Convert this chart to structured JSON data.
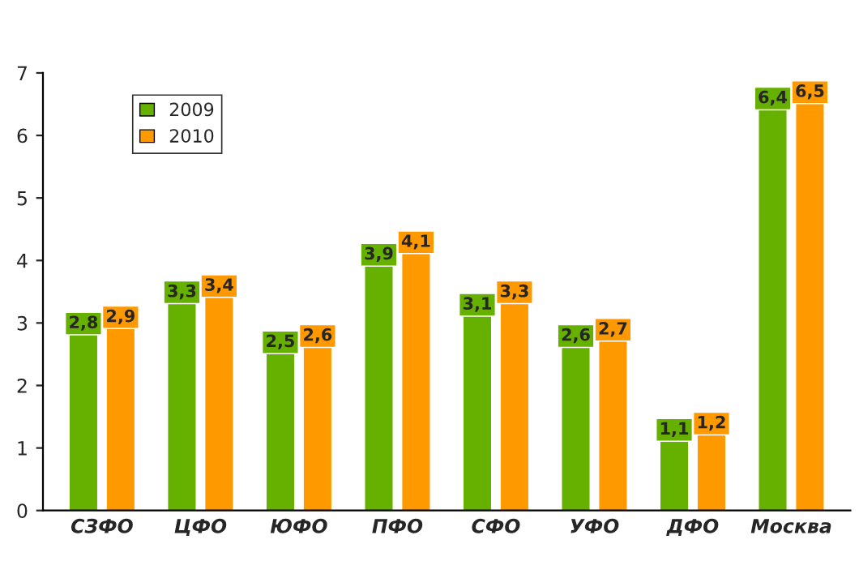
{
  "chart_data": {
    "type": "bar",
    "categories": [
      "СЗФО",
      "ЦФО",
      "ЮФО",
      "ПФО",
      "СФО",
      "УФО",
      "ДФО",
      "Москва"
    ],
    "series": [
      {
        "name": "2009",
        "color": "#66b000",
        "values": [
          2.8,
          3.3,
          2.5,
          3.9,
          3.1,
          2.6,
          1.1,
          6.4
        ],
        "value_labels": [
          "2,8",
          "3,3",
          "2,5",
          "3,9",
          "3,1",
          "2,6",
          "1,1",
          "6,4"
        ]
      },
      {
        "name": "2010",
        "color": "#ff9900",
        "values": [
          2.9,
          3.4,
          2.6,
          4.1,
          3.3,
          2.7,
          1.2,
          6.5
        ],
        "value_labels": [
          "2,9",
          "3,4",
          "2,6",
          "4,1",
          "3,3",
          "2,7",
          "1,2",
          "6,5"
        ]
      }
    ],
    "ylim": [
      0,
      7
    ],
    "yticks": [
      0,
      1,
      2,
      3,
      4,
      5,
      6,
      7
    ],
    "grid": false,
    "legend": "top left"
  }
}
